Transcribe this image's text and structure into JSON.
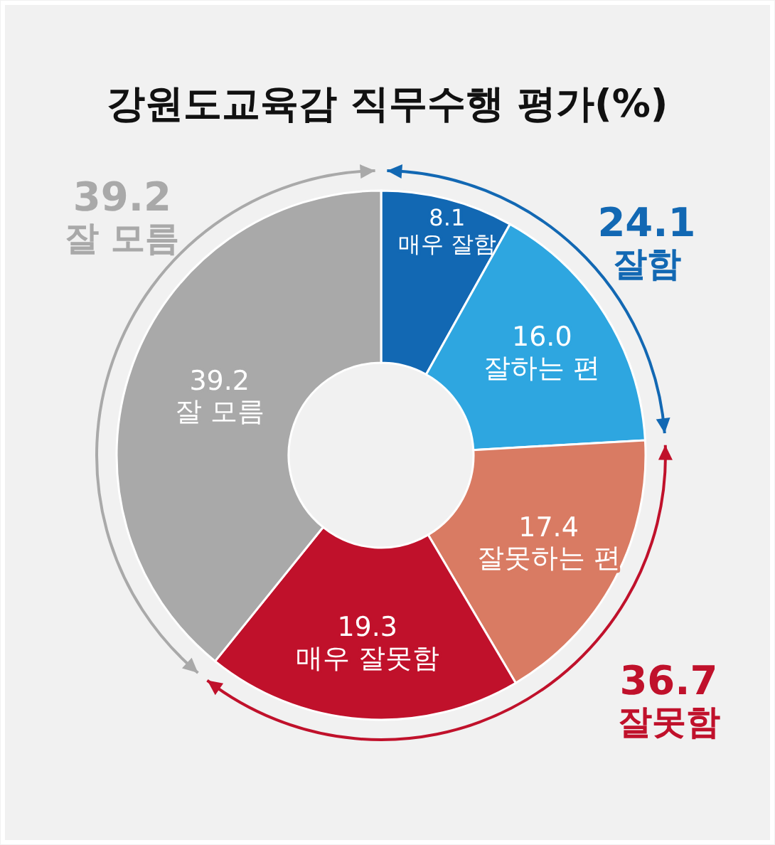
{
  "chart_data": {
    "type": "donut",
    "title": "강원도교육감 직무수행 평가(%)",
    "categories": [
      "매우 잘함",
      "잘하는 편",
      "잘못하는 편",
      "매우 잘못함",
      "잘 모름"
    ],
    "values": [
      8.1,
      16.0,
      17.4,
      19.3,
      39.2
    ],
    "colors": [
      "#1268b3",
      "#2ea6e0",
      "#d97b63",
      "#c0112b",
      "#a9a9a9"
    ],
    "value_labels": [
      "8.1",
      "16.0",
      "17.4",
      "19.3",
      "39.2"
    ],
    "annotations": [
      "24.1\n잘함",
      "36.7\n잘못함",
      "39.2\n잘 모름"
    ]
  }
}
